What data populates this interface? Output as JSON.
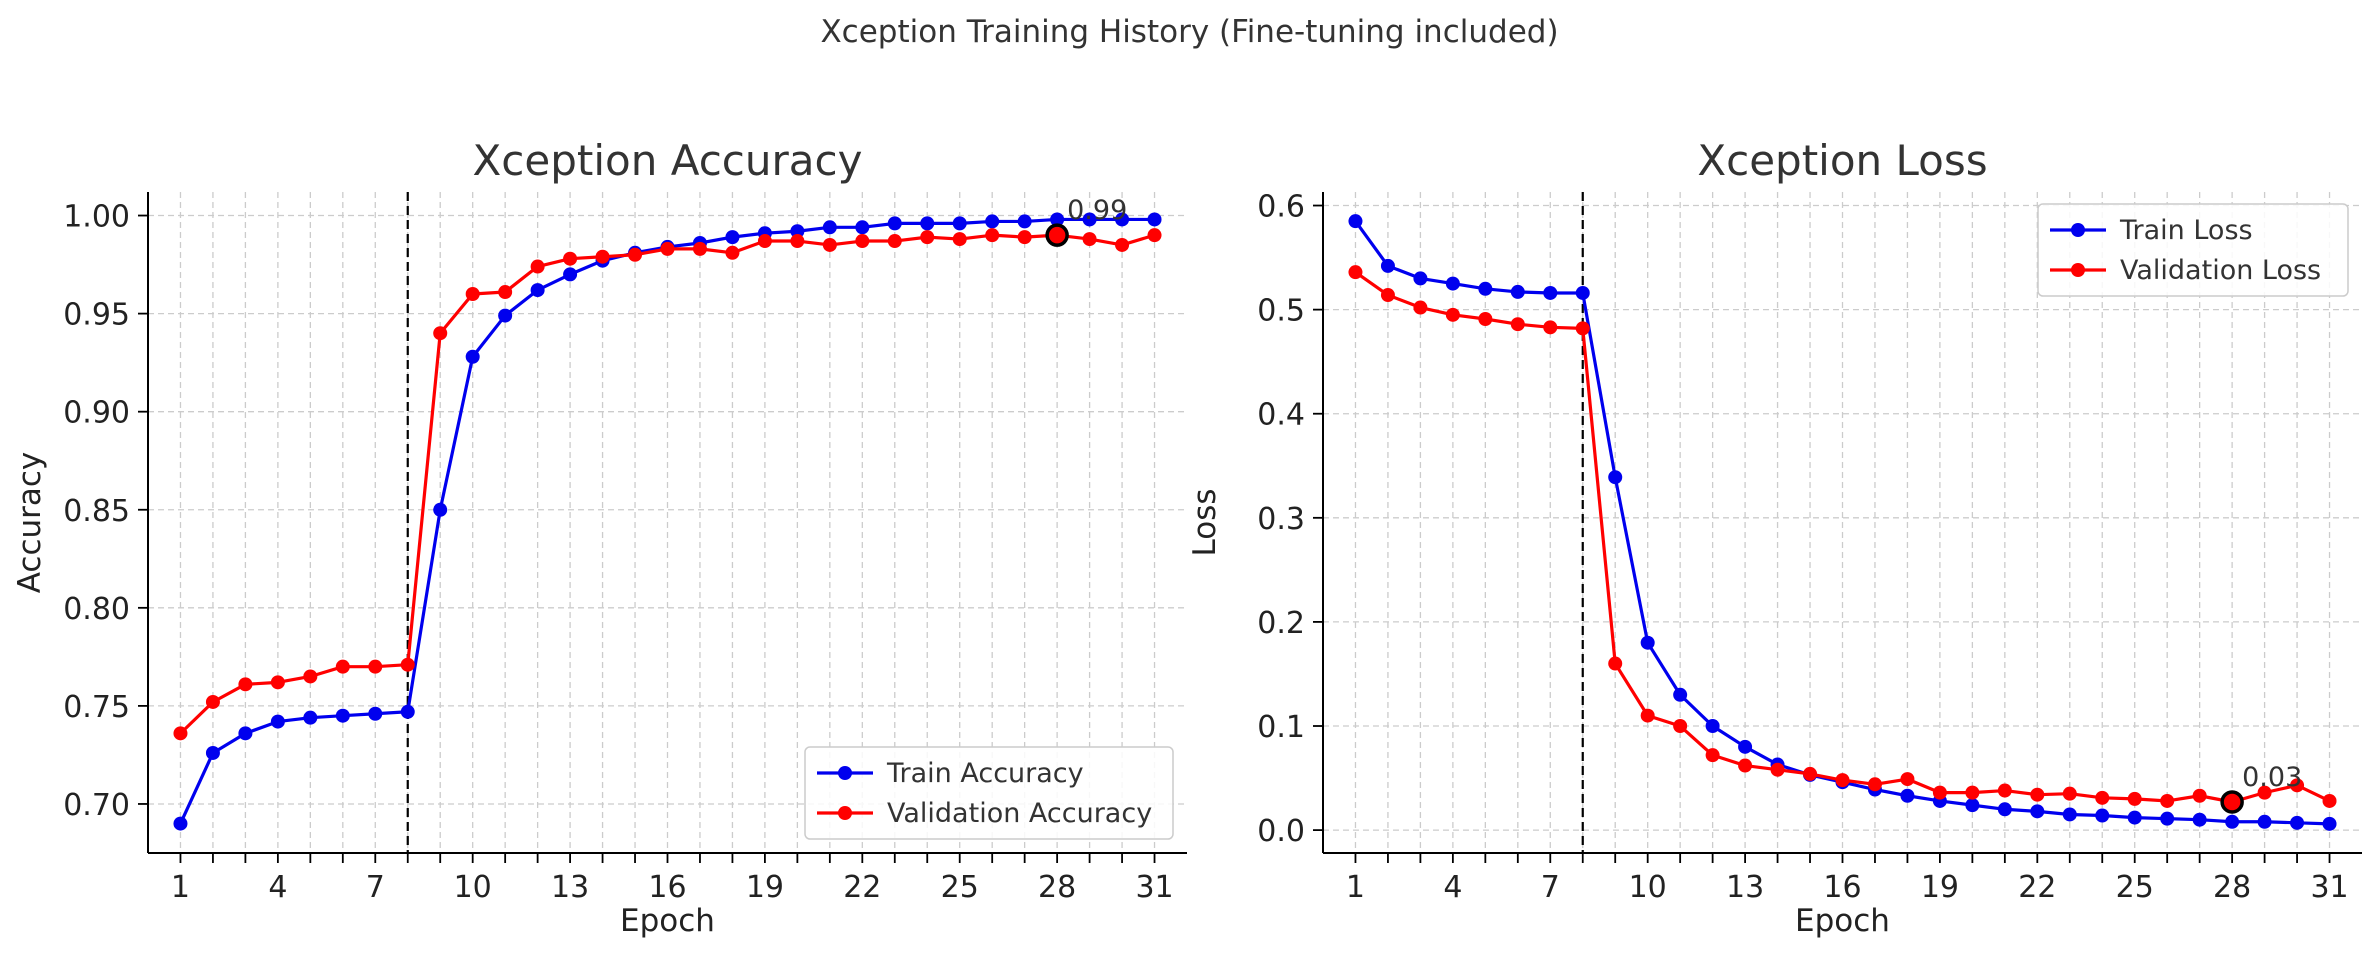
{
  "figure": {
    "title": "Xception Training History (Fine-tuning included)"
  },
  "chart_data": [
    {
      "type": "line",
      "title": "Xception Accuracy",
      "xlabel": "Epoch",
      "ylabel": "Accuracy",
      "x": [
        1,
        2,
        3,
        4,
        5,
        6,
        7,
        8,
        9,
        10,
        11,
        12,
        13,
        14,
        15,
        16,
        17,
        18,
        19,
        20,
        21,
        22,
        23,
        24,
        25,
        26,
        27,
        28,
        29,
        30,
        31
      ],
      "xlim": [
        0,
        32
      ],
      "ylim": [
        0.675,
        1.012
      ],
      "xticks": [
        1,
        4,
        7,
        10,
        13,
        16,
        19,
        22,
        25,
        28,
        31
      ],
      "yticks": [
        0.7,
        0.75,
        0.8,
        0.85,
        0.9,
        0.95,
        1.0
      ],
      "ytick_labels": [
        "0.70",
        "0.75",
        "0.80",
        "0.85",
        "0.90",
        "0.95",
        "1.00"
      ],
      "grid": true,
      "legend_position": "lower-right",
      "vline_x": 8,
      "series": [
        {
          "name": "Train Accuracy",
          "color": "#0000ee",
          "values": [
            0.69,
            0.726,
            0.736,
            0.742,
            0.744,
            0.745,
            0.746,
            0.747,
            0.85,
            0.928,
            0.949,
            0.962,
            0.97,
            0.977,
            0.981,
            0.984,
            0.986,
            0.989,
            0.991,
            0.992,
            0.994,
            0.994,
            0.996,
            0.996,
            0.996,
            0.997,
            0.997,
            0.998,
            0.998,
            0.998,
            0.998
          ]
        },
        {
          "name": "Validation Accuracy",
          "color": "#ff0000",
          "values": [
            0.736,
            0.752,
            0.761,
            0.762,
            0.765,
            0.77,
            0.77,
            0.771,
            0.94,
            0.96,
            0.961,
            0.974,
            0.978,
            0.979,
            0.98,
            0.983,
            0.983,
            0.981,
            0.987,
            0.987,
            0.985,
            0.987,
            0.987,
            0.989,
            0.988,
            0.99,
            0.989,
            0.99,
            0.988,
            0.985,
            0.99
          ]
        }
      ],
      "highlight": {
        "x": 28,
        "y": 0.99,
        "label": "0.99"
      }
    },
    {
      "type": "line",
      "title": "Xception Loss",
      "xlabel": "Epoch",
      "ylabel": "Loss",
      "x": [
        1,
        2,
        3,
        4,
        5,
        6,
        7,
        8,
        9,
        10,
        11,
        12,
        13,
        14,
        15,
        16,
        17,
        18,
        19,
        20,
        21,
        22,
        23,
        24,
        25,
        26,
        27,
        28,
        29,
        30,
        31
      ],
      "xlim": [
        0,
        32
      ],
      "ylim": [
        -0.022,
        0.613
      ],
      "xticks": [
        1,
        4,
        7,
        10,
        13,
        16,
        19,
        22,
        25,
        28,
        31
      ],
      "yticks": [
        0.0,
        0.1,
        0.2,
        0.3,
        0.4,
        0.5,
        0.6
      ],
      "ytick_labels": [
        "0.0",
        "0.1",
        "0.2",
        "0.3",
        "0.4",
        "0.5",
        "0.6"
      ],
      "grid": true,
      "legend_position": "upper-right",
      "vline_x": 8,
      "series": [
        {
          "name": "Train Loss",
          "color": "#0000ee",
          "values": [
            0.585,
            0.542,
            0.53,
            0.525,
            0.52,
            0.517,
            0.516,
            0.516,
            0.339,
            0.18,
            0.13,
            0.1,
            0.08,
            0.063,
            0.053,
            0.046,
            0.039,
            0.033,
            0.028,
            0.024,
            0.02,
            0.018,
            0.015,
            0.014,
            0.012,
            0.011,
            0.01,
            0.008,
            0.008,
            0.007,
            0.006
          ]
        },
        {
          "name": "Validation Loss",
          "color": "#ff0000",
          "values": [
            0.536,
            0.514,
            0.502,
            0.495,
            0.491,
            0.486,
            0.483,
            0.482,
            0.16,
            0.11,
            0.1,
            0.072,
            0.062,
            0.058,
            0.054,
            0.048,
            0.044,
            0.049,
            0.036,
            0.036,
            0.038,
            0.034,
            0.035,
            0.031,
            0.03,
            0.028,
            0.033,
            0.027,
            0.036,
            0.043,
            0.028
          ]
        }
      ],
      "highlight": {
        "x": 28,
        "y": 0.027,
        "label": "0.03"
      }
    }
  ]
}
